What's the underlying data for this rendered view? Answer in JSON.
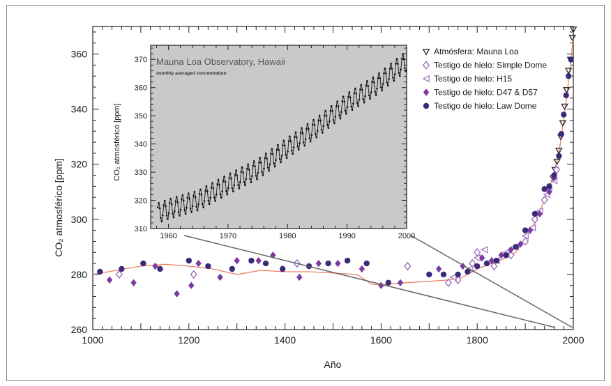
{
  "chart_data": [
    {
      "type": "scatter",
      "xlabel": "Año",
      "ylabel": "CO₂ atmosférico [ppm]",
      "xlim": [
        1000,
        2000
      ],
      "ylim": [
        260,
        370
      ],
      "x_ticks": [
        "1000",
        "1200",
        "1400",
        "1600",
        "1800",
        "2000"
      ],
      "y_ticks": [
        "260",
        "280",
        "300",
        "320",
        "340",
        "360"
      ],
      "legend_position": "top-right",
      "colors": {
        "mauna_loa": "#333333",
        "simple_dome": "#8d5bb5",
        "h15": "#9a6fc0",
        "d47_d57": "#7a3aa0",
        "law_dome": "#3a2a78",
        "spline": "#f08060",
        "zoom_lines": "#666666"
      },
      "series": [
        {
          "name": "Atmósfera: Mauna Loa",
          "marker": "triangle-down",
          "points": [
            [
              1958,
              315
            ],
            [
              1962,
              318
            ],
            [
              1966,
              321
            ],
            [
              1970,
              325
            ],
            [
              1974,
              330
            ],
            [
              1978,
              335
            ],
            [
              1982,
              341
            ],
            [
              1986,
              347
            ],
            [
              1990,
              354
            ],
            [
              1994,
              358
            ],
            [
              1998,
              366
            ],
            [
              2000,
              369
            ]
          ]
        },
        {
          "name": "Testigo de hielo: Simple Dome",
          "marker": "diamond-open",
          "points": [
            [
              1055,
              280
            ],
            [
              1210,
              280
            ],
            [
              1425,
              284
            ],
            [
              1655,
              283
            ],
            [
              1740,
              277
            ],
            [
              1760,
              278
            ],
            [
              1790,
              284
            ],
            [
              1800,
              288
            ],
            [
              1835,
              283
            ],
            [
              1870,
              287
            ],
            [
              1900,
              292
            ],
            [
              1920,
              300
            ],
            [
              1940,
              307
            ],
            [
              1950,
              311
            ],
            [
              1965,
              318
            ]
          ]
        },
        {
          "name": "Testigo de hielo: H15",
          "marker": "triangle-left-open",
          "points": [
            [
              1750,
              279
            ],
            [
              1785,
              282
            ],
            [
              1800,
              286
            ],
            [
              1815,
              289
            ],
            [
              1840,
              285
            ],
            [
              1860,
              288
            ],
            [
              1880,
              290
            ],
            [
              1900,
              294
            ],
            [
              1915,
              297
            ],
            [
              1930,
              303
            ],
            [
              1945,
              309
            ],
            [
              1960,
              314
            ]
          ]
        },
        {
          "name": "Testigo de hielo: D47 & D57",
          "marker": "diamond-filled",
          "points": [
            [
              1035,
              278
            ],
            [
              1085,
              277
            ],
            [
              1130,
              283
            ],
            [
              1175,
              273
            ],
            [
              1205,
              276
            ],
            [
              1220,
              284
            ],
            [
              1265,
              279
            ],
            [
              1300,
              285
            ],
            [
              1345,
              285
            ],
            [
              1375,
              287
            ],
            [
              1430,
              279
            ],
            [
              1470,
              284
            ],
            [
              1510,
              284
            ],
            [
              1560,
              282
            ],
            [
              1600,
              276
            ],
            [
              1640,
              277
            ],
            [
              1720,
              282
            ],
            [
              1770,
              283
            ],
            [
              1810,
              286
            ],
            [
              1830,
              285
            ],
            [
              1850,
              287
            ],
            [
              1870,
              289
            ],
            [
              1890,
              291
            ],
            [
              1910,
              296
            ],
            [
              1930,
              302
            ],
            [
              1950,
              310
            ],
            [
              1960,
              315
            ]
          ]
        },
        {
          "name": "Testigo de hielo: Law Dome",
          "marker": "circle-filled",
          "points": [
            [
              1015,
              281
            ],
            [
              1060,
              282
            ],
            [
              1105,
              284
            ],
            [
              1140,
              282
            ],
            [
              1200,
              285
            ],
            [
              1240,
              283
            ],
            [
              1290,
              282
            ],
            [
              1330,
              285
            ],
            [
              1360,
              284
            ],
            [
              1395,
              282
            ],
            [
              1450,
              283
            ],
            [
              1490,
              284
            ],
            [
              1530,
              285
            ],
            [
              1570,
              284
            ],
            [
              1615,
              277
            ],
            [
              1700,
              280
            ],
            [
              1730,
              280
            ],
            [
              1760,
              280
            ],
            [
              1780,
              281
            ],
            [
              1800,
              283
            ],
            [
              1820,
              284
            ],
            [
              1840,
              285
            ],
            [
              1860,
              287
            ],
            [
              1880,
              290
            ],
            [
              1900,
              296
            ],
            [
              1920,
              302
            ],
            [
              1940,
              311
            ],
            [
              1950,
              312
            ],
            [
              1960,
              316
            ],
            [
              1970,
              323
            ],
            [
              1975,
              331
            ],
            [
              1980,
              338
            ],
            [
              1985,
              345
            ],
            [
              1990,
              352
            ],
            [
              1995,
              358
            ]
          ]
        }
      ],
      "spline": {
        "x": [
          1000,
          1050,
          1100,
          1150,
          1200,
          1250,
          1300,
          1350,
          1400,
          1450,
          1500,
          1550,
          1580,
          1600,
          1650,
          1700,
          1740,
          1770,
          1800,
          1830,
          1860,
          1880,
          1900,
          1920,
          1940,
          1950,
          1960,
          1970,
          1980,
          1990,
          2000
        ],
        "y": [
          280,
          281.5,
          283,
          283.7,
          283,
          282,
          280,
          281.5,
          281,
          281,
          280.5,
          280,
          276.5,
          276.2,
          277,
          277.5,
          278,
          279,
          282,
          284,
          286,
          288,
          293,
          299,
          307,
          311,
          317,
          324,
          336,
          350,
          366
        ]
      }
    },
    {
      "type": "line",
      "title": "Mauna Loa Observatory, Hawaii",
      "subtitle": "monthly averaged concentration",
      "ylabel": "CO₂ atmosférico [ppm]",
      "xlim": [
        1957,
        2000
      ],
      "ylim": [
        310,
        375
      ],
      "x_ticks": [
        "1960",
        "1970",
        "1980",
        "1990",
        "2000"
      ],
      "y_ticks": [
        "310",
        "320",
        "330",
        "340",
        "350",
        "360",
        "370"
      ],
      "background": "#c8c9c8",
      "trend": {
        "x": [
          1958,
          1960,
          1965,
          1970,
          1975,
          1980,
          1985,
          1990,
          1995,
          2000
        ],
        "y": [
          315.3,
          316.9,
          320.0,
          325.7,
          331.1,
          338.7,
          346.0,
          354.4,
          361.0,
          369.5
        ]
      },
      "seasonal_amplitude_ppm": 3.5
    }
  ],
  "legend": {
    "items": [
      {
        "label": "Atmósfera: Mauna Loa",
        "marker": "triangle-down"
      },
      {
        "label": "Testigo de hielo: Simple Dome",
        "marker": "diamond-open"
      },
      {
        "label": "Testigo de hielo: H15",
        "marker": "triangle-left-open"
      },
      {
        "label": "Testigo de hielo: D47 & D57",
        "marker": "diamond-filled"
      },
      {
        "label": "Testigo de hielo: Law Dome",
        "marker": "circle-filled"
      }
    ]
  }
}
